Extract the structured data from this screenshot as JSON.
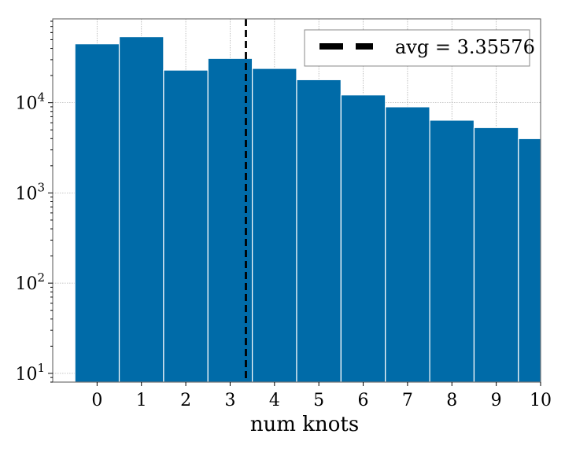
{
  "chart_data": {
    "type": "bar",
    "xlabel": "num knots",
    "ylabel": "",
    "yscale": "log",
    "ylim": [
      8,
      85000
    ],
    "xlim": [
      -1,
      10
    ],
    "categories": [
      "0",
      "1",
      "2",
      "3",
      "4",
      "5",
      "6",
      "7",
      "8",
      "9",
      "10"
    ],
    "values": [
      45000,
      54000,
      23000,
      31000,
      24000,
      18000,
      12200,
      9000,
      6400,
      5300,
      4000
    ],
    "bar_color": "#006ba8",
    "x_ticks": [
      "0",
      "1",
      "2",
      "3",
      "4",
      "5",
      "6",
      "7",
      "8",
      "9",
      "10"
    ],
    "y_ticks": [
      {
        "value": 10,
        "base": "10",
        "exp": "1"
      },
      {
        "value": 100,
        "base": "10",
        "exp": "2"
      },
      {
        "value": 1000,
        "base": "10",
        "exp": "3"
      },
      {
        "value": 10000,
        "base": "10",
        "exp": "4"
      }
    ],
    "average": {
      "value": 3.35576,
      "label": "avg = 3.35576",
      "color": "#000000",
      "style": "dashed"
    },
    "grid": true,
    "legend_position": "top-right"
  }
}
